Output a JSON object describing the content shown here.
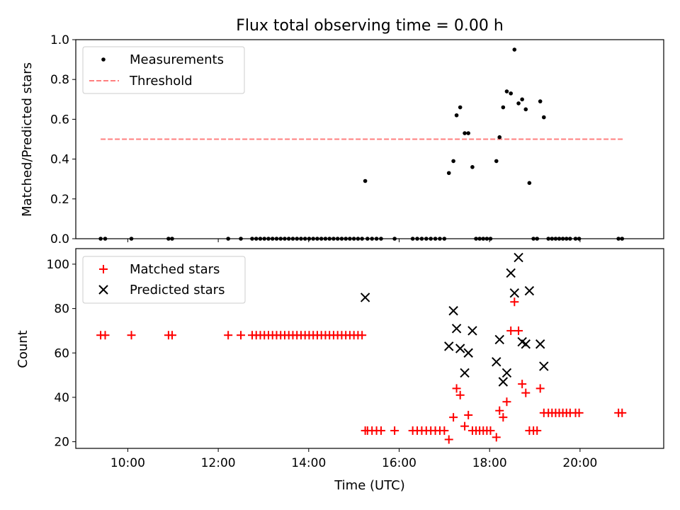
{
  "chart_data": [
    {
      "type": "scatter",
      "title": "Flux total observing time = 0.00 h",
      "xlabel": "",
      "ylabel": "Matched/Predicted stars",
      "xlim": [
        8.85,
        21.85
      ],
      "ylim": [
        0.0,
        1.0
      ],
      "yticks": [
        "0.0",
        "0.2",
        "0.4",
        "0.6",
        "0.8",
        "1.0"
      ],
      "legend_position": "top-left",
      "threshold": {
        "name": "Threshold",
        "value": 0.5,
        "x": [
          9.4,
          20.95
        ],
        "color": "#ff7f7f"
      },
      "series": [
        {
          "name": "Measurements",
          "color": "#000000",
          "points": [
            [
              9.4,
              0
            ],
            [
              9.5,
              0
            ],
            [
              10.08,
              0
            ],
            [
              10.9,
              0
            ],
            [
              10.98,
              0
            ],
            [
              12.22,
              0
            ],
            [
              12.5,
              0
            ],
            [
              12.75,
              0
            ],
            [
              12.84,
              0
            ],
            [
              12.93,
              0
            ],
            [
              13.02,
              0
            ],
            [
              13.11,
              0
            ],
            [
              13.2,
              0
            ],
            [
              13.29,
              0
            ],
            [
              13.38,
              0
            ],
            [
              13.47,
              0
            ],
            [
              13.56,
              0
            ],
            [
              13.65,
              0
            ],
            [
              13.74,
              0
            ],
            [
              13.83,
              0
            ],
            [
              13.92,
              0
            ],
            [
              14.01,
              0
            ],
            [
              14.1,
              0
            ],
            [
              14.19,
              0
            ],
            [
              14.28,
              0
            ],
            [
              14.37,
              0
            ],
            [
              14.46,
              0
            ],
            [
              14.55,
              0
            ],
            [
              14.64,
              0
            ],
            [
              14.73,
              0
            ],
            [
              14.82,
              0
            ],
            [
              14.91,
              0
            ],
            [
              15.0,
              0
            ],
            [
              15.09,
              0
            ],
            [
              15.18,
              0
            ],
            [
              15.25,
              0.29
            ],
            [
              15.3,
              0
            ],
            [
              15.4,
              0
            ],
            [
              15.5,
              0
            ],
            [
              15.6,
              0
            ],
            [
              15.9,
              0
            ],
            [
              16.3,
              0
            ],
            [
              16.4,
              0
            ],
            [
              16.5,
              0
            ],
            [
              16.6,
              0
            ],
            [
              16.7,
              0
            ],
            [
              16.8,
              0
            ],
            [
              16.9,
              0
            ],
            [
              17.0,
              0
            ],
            [
              17.1,
              0.33
            ],
            [
              17.2,
              0.39
            ],
            [
              17.27,
              0.62
            ],
            [
              17.35,
              0.66
            ],
            [
              17.45,
              0.53
            ],
            [
              17.53,
              0.53
            ],
            [
              17.62,
              0.36
            ],
            [
              17.7,
              0
            ],
            [
              17.78,
              0
            ],
            [
              17.86,
              0
            ],
            [
              17.94,
              0
            ],
            [
              18.02,
              0
            ],
            [
              18.15,
              0.39
            ],
            [
              18.22,
              0.51
            ],
            [
              18.3,
              0.66
            ],
            [
              18.38,
              0.74
            ],
            [
              18.47,
              0.73
            ],
            [
              18.55,
              0.95
            ],
            [
              18.64,
              0.68
            ],
            [
              18.72,
              0.7
            ],
            [
              18.8,
              0.65
            ],
            [
              18.88,
              0.28
            ],
            [
              18.97,
              0
            ],
            [
              19.05,
              0
            ],
            [
              19.12,
              0.69
            ],
            [
              19.2,
              0.61
            ],
            [
              19.3,
              0
            ],
            [
              19.38,
              0
            ],
            [
              19.46,
              0
            ],
            [
              19.54,
              0
            ],
            [
              19.62,
              0
            ],
            [
              19.7,
              0
            ],
            [
              19.78,
              0
            ],
            [
              19.9,
              0
            ],
            [
              19.98,
              0
            ],
            [
              20.85,
              0
            ],
            [
              20.93,
              0
            ]
          ]
        }
      ]
    },
    {
      "type": "scatter",
      "title": "",
      "xlabel": "Time (UTC)",
      "ylabel": "Count",
      "xlim": [
        8.85,
        21.85
      ],
      "ylim": [
        17,
        107
      ],
      "yticks": [
        "20",
        "40",
        "60",
        "80",
        "100"
      ],
      "xticks": [
        {
          "value": 10,
          "label": "10:00"
        },
        {
          "value": 12,
          "label": "12:00"
        },
        {
          "value": 14,
          "label": "14:00"
        },
        {
          "value": 16,
          "label": "16:00"
        },
        {
          "value": 18,
          "label": "18:00"
        },
        {
          "value": 20,
          "label": "20:00"
        }
      ],
      "legend_position": "top-left",
      "series": [
        {
          "name": "Matched stars",
          "marker": "plus",
          "color": "#ff0000",
          "points": [
            [
              9.4,
              68
            ],
            [
              9.5,
              68
            ],
            [
              10.08,
              68
            ],
            [
              10.9,
              68
            ],
            [
              10.98,
              68
            ],
            [
              12.22,
              68
            ],
            [
              12.5,
              68
            ],
            [
              12.75,
              68
            ],
            [
              12.84,
              68
            ],
            [
              12.93,
              68
            ],
            [
              13.02,
              68
            ],
            [
              13.11,
              68
            ],
            [
              13.2,
              68
            ],
            [
              13.29,
              68
            ],
            [
              13.38,
              68
            ],
            [
              13.47,
              68
            ],
            [
              13.56,
              68
            ],
            [
              13.65,
              68
            ],
            [
              13.74,
              68
            ],
            [
              13.83,
              68
            ],
            [
              13.92,
              68
            ],
            [
              14.01,
              68
            ],
            [
              14.1,
              68
            ],
            [
              14.19,
              68
            ],
            [
              14.28,
              68
            ],
            [
              14.37,
              68
            ],
            [
              14.46,
              68
            ],
            [
              14.55,
              68
            ],
            [
              14.64,
              68
            ],
            [
              14.73,
              68
            ],
            [
              14.82,
              68
            ],
            [
              14.91,
              68
            ],
            [
              15.0,
              68
            ],
            [
              15.09,
              68
            ],
            [
              15.18,
              68
            ],
            [
              15.25,
              25
            ],
            [
              15.3,
              25
            ],
            [
              15.4,
              25
            ],
            [
              15.5,
              25
            ],
            [
              15.6,
              25
            ],
            [
              15.9,
              25
            ],
            [
              16.3,
              25
            ],
            [
              16.4,
              25
            ],
            [
              16.5,
              25
            ],
            [
              16.6,
              25
            ],
            [
              16.7,
              25
            ],
            [
              16.8,
              25
            ],
            [
              16.9,
              25
            ],
            [
              17.0,
              25
            ],
            [
              17.1,
              21
            ],
            [
              17.2,
              31
            ],
            [
              17.27,
              44
            ],
            [
              17.35,
              41
            ],
            [
              17.45,
              27
            ],
            [
              17.53,
              32
            ],
            [
              17.62,
              25
            ],
            [
              17.7,
              25
            ],
            [
              17.78,
              25
            ],
            [
              17.86,
              25
            ],
            [
              17.94,
              25
            ],
            [
              18.02,
              25
            ],
            [
              18.15,
              22
            ],
            [
              18.22,
              34
            ],
            [
              18.3,
              31
            ],
            [
              18.38,
              38
            ],
            [
              18.47,
              70
            ],
            [
              18.55,
              83
            ],
            [
              18.64,
              70
            ],
            [
              18.72,
              46
            ],
            [
              18.8,
              42
            ],
            [
              18.88,
              25
            ],
            [
              18.97,
              25
            ],
            [
              19.05,
              25
            ],
            [
              19.12,
              44
            ],
            [
              19.2,
              33
            ],
            [
              19.3,
              33
            ],
            [
              19.38,
              33
            ],
            [
              19.46,
              33
            ],
            [
              19.54,
              33
            ],
            [
              19.62,
              33
            ],
            [
              19.7,
              33
            ],
            [
              19.78,
              33
            ],
            [
              19.9,
              33
            ],
            [
              19.98,
              33
            ],
            [
              20.85,
              33
            ],
            [
              20.93,
              33
            ]
          ]
        },
        {
          "name": "Predicted stars",
          "marker": "x",
          "color": "#000000",
          "points": [
            [
              15.25,
              85
            ],
            [
              17.1,
              63
            ],
            [
              17.2,
              79
            ],
            [
              17.27,
              71
            ],
            [
              17.35,
              62
            ],
            [
              17.45,
              51
            ],
            [
              17.53,
              60
            ],
            [
              17.62,
              70
            ],
            [
              18.15,
              56
            ],
            [
              18.22,
              66
            ],
            [
              18.3,
              47
            ],
            [
              18.38,
              51
            ],
            [
              18.47,
              96
            ],
            [
              18.55,
              87
            ],
            [
              18.64,
              103
            ],
            [
              18.72,
              65
            ],
            [
              18.8,
              64
            ],
            [
              18.88,
              88
            ],
            [
              19.12,
              64
            ],
            [
              19.2,
              54
            ]
          ]
        }
      ]
    }
  ]
}
